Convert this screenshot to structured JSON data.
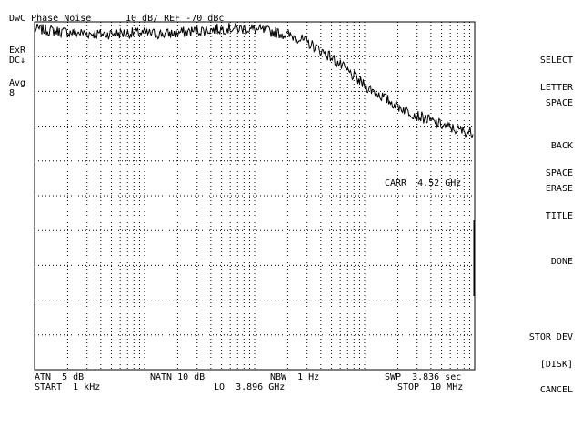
{
  "header": {
    "title": "DwC Phase Noise",
    "scale": "10 dB/ REF -70 dBc"
  },
  "left_annotations": {
    "ext_ref": "ExR",
    "dc_coupling": "DC↓",
    "avg_label": "Avg",
    "avg_count": "8"
  },
  "marker": {
    "carrier": "CARR  4.52 GHz"
  },
  "footer": {
    "atn": "ATN  5 dB",
    "natn": "NATN 10 dB",
    "nbw": "NBW  1 Hz",
    "swp": "SWP  3.836 sec",
    "start": "START  1 kHz",
    "lo": "LO  3.896 GHz",
    "stop": "STOP  10 MHz"
  },
  "softkeys": [
    {
      "line1": "SELECT",
      "line2": "LETTER"
    },
    {
      "line1": "SPACE",
      "line2": ""
    },
    {
      "line1": "BACK",
      "line2": "SPACE"
    },
    {
      "line1": "ERASE",
      "line2": "TITLE"
    },
    {
      "line1": "DONE",
      "line2": ""
    },
    {
      "line1": "STOR DEV",
      "line2": "[DISK]"
    },
    {
      "line1": "CANCEL",
      "line2": ""
    }
  ],
  "trace": {
    "color": "#000000",
    "grid_color": "#000000",
    "decades": 4,
    "vertical_divisions": 10,
    "points_dbc": [
      [
        0,
        -72
      ],
      [
        0.3,
        -73
      ],
      [
        0.6,
        -73.5
      ],
      [
        0.9,
        -73.2
      ],
      [
        1.2,
        -73.5
      ],
      [
        1.5,
        -72.5
      ],
      [
        1.8,
        -71.8
      ],
      [
        2.0,
        -72.2
      ],
      [
        2.2,
        -73
      ],
      [
        2.4,
        -74.5
      ],
      [
        2.55,
        -77
      ],
      [
        2.7,
        -80
      ],
      [
        2.85,
        -84
      ],
      [
        3.0,
        -88
      ],
      [
        3.15,
        -91
      ],
      [
        3.3,
        -94
      ],
      [
        3.5,
        -97
      ],
      [
        3.7,
        -99.5
      ],
      [
        3.85,
        -101
      ],
      [
        4.0,
        -102
      ]
    ]
  }
}
